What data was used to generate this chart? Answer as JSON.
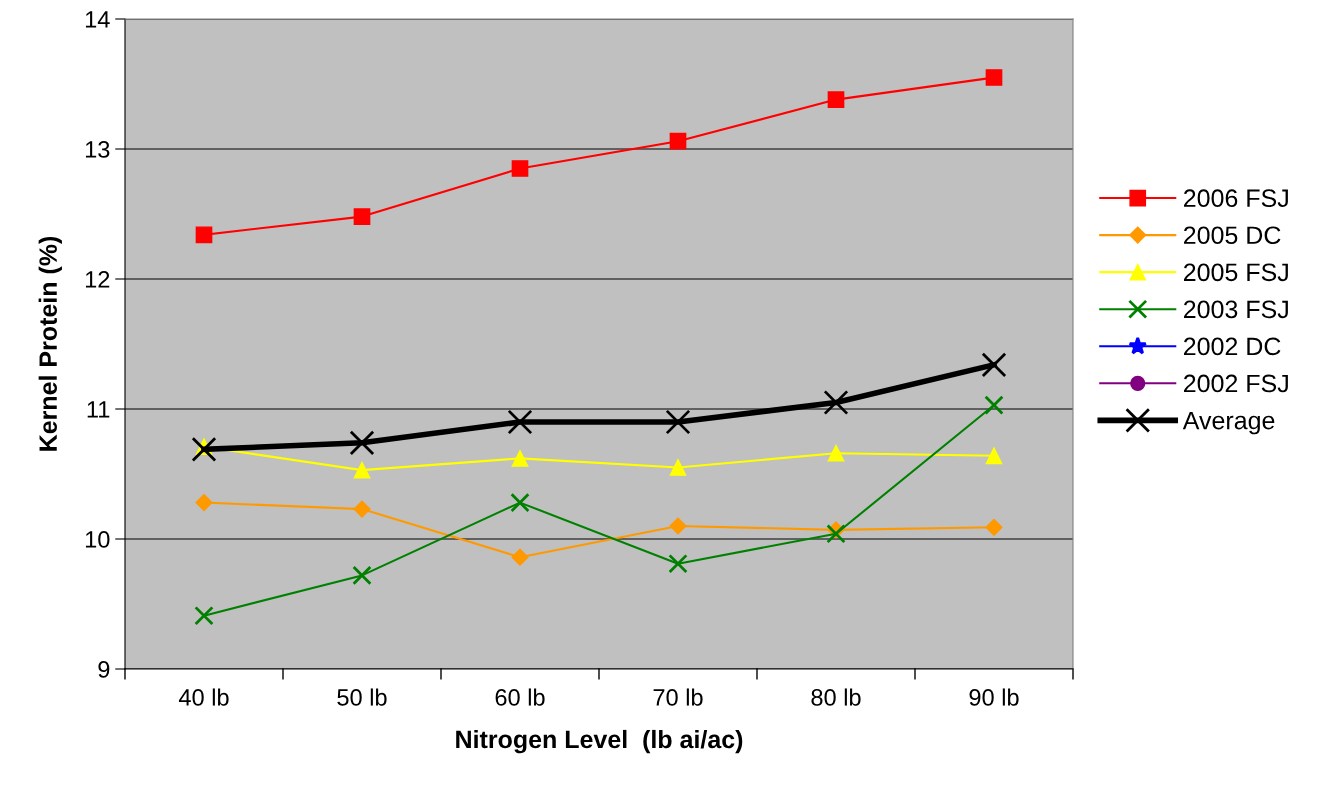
{
  "chart_data": {
    "type": "line",
    "xlabel": "Nitrogen Level  (lb ai/ac)",
    "ylabel": "Kernel Protein (%)",
    "categories": [
      "40 lb",
      "50 lb",
      "60 lb",
      "70 lb",
      "80 lb",
      "90 lb"
    ],
    "ylim": [
      9,
      14
    ],
    "yticks": [
      9,
      10,
      11,
      12,
      13,
      14
    ],
    "grid": "y",
    "legend": "right",
    "series": [
      {
        "name": "2006 FSJ",
        "color": "#ff0000",
        "marker": "square",
        "values": [
          12.34,
          12.48,
          12.85,
          13.06,
          13.38,
          13.55
        ]
      },
      {
        "name": "2005 DC",
        "color": "#ff9900",
        "marker": "diamond",
        "values": [
          10.28,
          10.23,
          9.86,
          10.1,
          10.07,
          10.09
        ]
      },
      {
        "name": "2005 FSJ",
        "color": "#ffff00",
        "marker": "triangle",
        "values": [
          10.71,
          10.53,
          10.62,
          10.55,
          10.66,
          10.64
        ]
      },
      {
        "name": "2003 FSJ",
        "color": "#008000",
        "marker": "cross",
        "values": [
          9.41,
          9.72,
          10.28,
          9.81,
          10.04,
          11.03
        ]
      },
      {
        "name": "2002 DC",
        "color": "#0000ff",
        "marker": "star",
        "values": [
          null,
          null,
          null,
          null,
          null,
          null
        ]
      },
      {
        "name": "2002 FSJ",
        "color": "#800080",
        "marker": "circle",
        "values": [
          null,
          null,
          null,
          null,
          null,
          null
        ]
      },
      {
        "name": "Average",
        "color": "#000000",
        "marker": "cross",
        "values": [
          10.69,
          10.74,
          10.9,
          10.9,
          11.05,
          11.34
        ]
      }
    ]
  }
}
